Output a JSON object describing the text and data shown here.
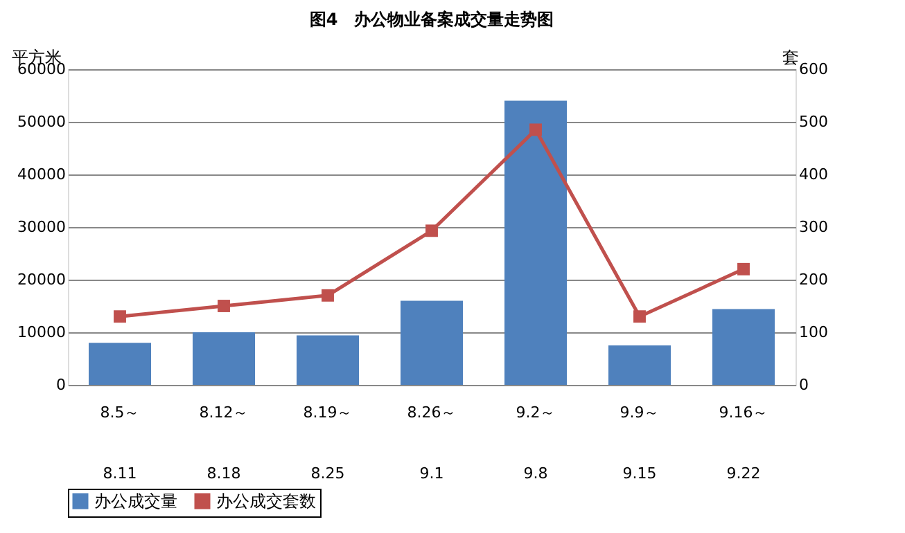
{
  "chart_data": {
    "type": "bar",
    "title": "图4　办公物业备案成交量走势图",
    "ylabel": "平方米",
    "y2label": "套",
    "categories": [
      "8.5～\n8.11",
      "8.12～\n8.18",
      "8.19～\n8.25",
      "8.26～\n9.1",
      "9.2～\n9.8",
      "9.9～\n9.15",
      "9.16～\n9.22"
    ],
    "series": [
      {
        "name": "办公成交量",
        "color": "#4f81bd",
        "values": [
          8000,
          10000,
          9400,
          16000,
          54000,
          7500,
          14400
        ]
      },
      {
        "name": "办公成交套数",
        "type": "line",
        "axis": "y2",
        "color": "#c0504d",
        "marker": "square",
        "values": [
          130,
          150,
          170,
          293,
          485,
          130,
          220
        ]
      }
    ],
    "ylim": [
      0,
      60000
    ],
    "yticks": [
      0,
      10000,
      20000,
      30000,
      40000,
      50000,
      60000
    ],
    "y2lim": [
      0,
      600
    ],
    "y2ticks": [
      0,
      100,
      200,
      300,
      400,
      500,
      600
    ],
    "grid": "y",
    "legend": "bottom"
  }
}
